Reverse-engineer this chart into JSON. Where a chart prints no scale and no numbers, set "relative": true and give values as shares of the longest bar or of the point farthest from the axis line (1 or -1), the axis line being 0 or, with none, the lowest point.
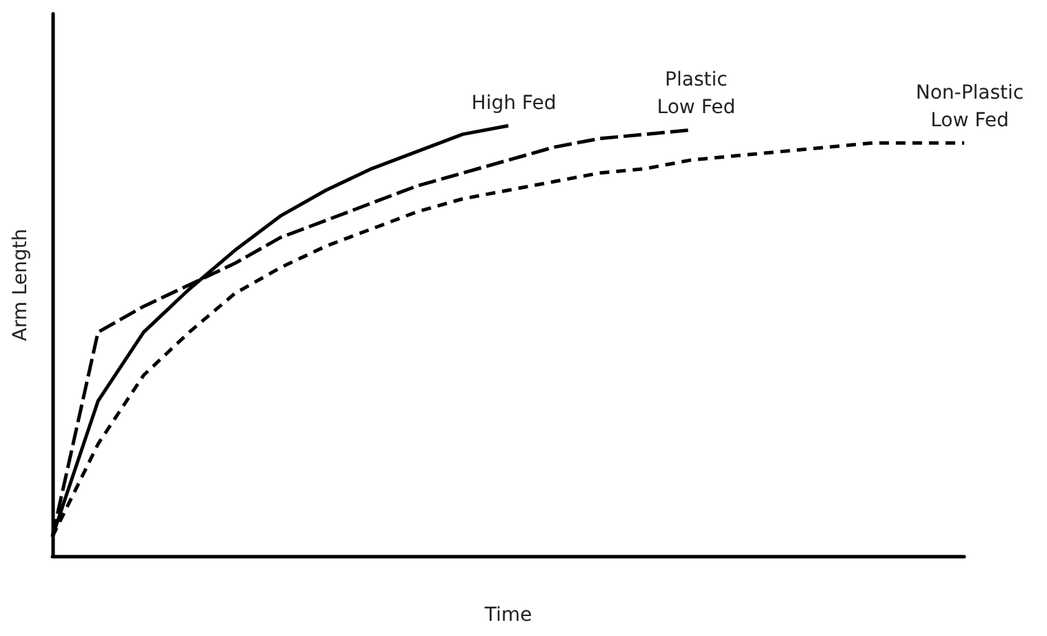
{
  "chart_data": {
    "type": "line",
    "relative": true,
    "xlabel": "Time",
    "ylabel": "Arm Length",
    "grid": false,
    "legend": false,
    "marker": "none",
    "categories": [
      null,
      null,
      null,
      null,
      null,
      null,
      null,
      null,
      null,
      null,
      null,
      null,
      null,
      null,
      null,
      null,
      null,
      null,
      null,
      null,
      null
    ],
    "series": [
      {
        "name": "High Fed",
        "color": "#000000",
        "line_style": "solid",
        "values": [
          0.045,
          0.36,
          0.52,
          0.62,
          0.71,
          0.79,
          0.85,
          0.9,
          0.94,
          0.98,
          1,
          null,
          null,
          null,
          null,
          null,
          null,
          null,
          null,
          null,
          null
        ]
      },
      {
        "name": "Plastic\nLow Fed",
        "color": "#000000",
        "line_style": "dashed",
        "values": [
          0.045,
          0.52,
          0.58,
          0.63,
          0.68,
          0.74,
          0.78,
          0.82,
          0.86,
          0.89,
          0.92,
          0.95,
          0.97,
          0.98,
          0.99,
          null,
          null,
          null,
          null,
          null,
          null
        ]
      },
      {
        "name": "Non-Plastic\nLow Fed",
        "color": "#000000",
        "line_style": "dashed",
        "values": [
          0.045,
          0.26,
          0.42,
          0.52,
          0.61,
          0.67,
          0.72,
          0.76,
          0.8,
          0.83,
          0.85,
          0.87,
          0.89,
          0.9,
          0.92,
          0.93,
          0.94,
          0.95,
          0.96,
          0.96,
          0.96
        ]
      }
    ]
  }
}
